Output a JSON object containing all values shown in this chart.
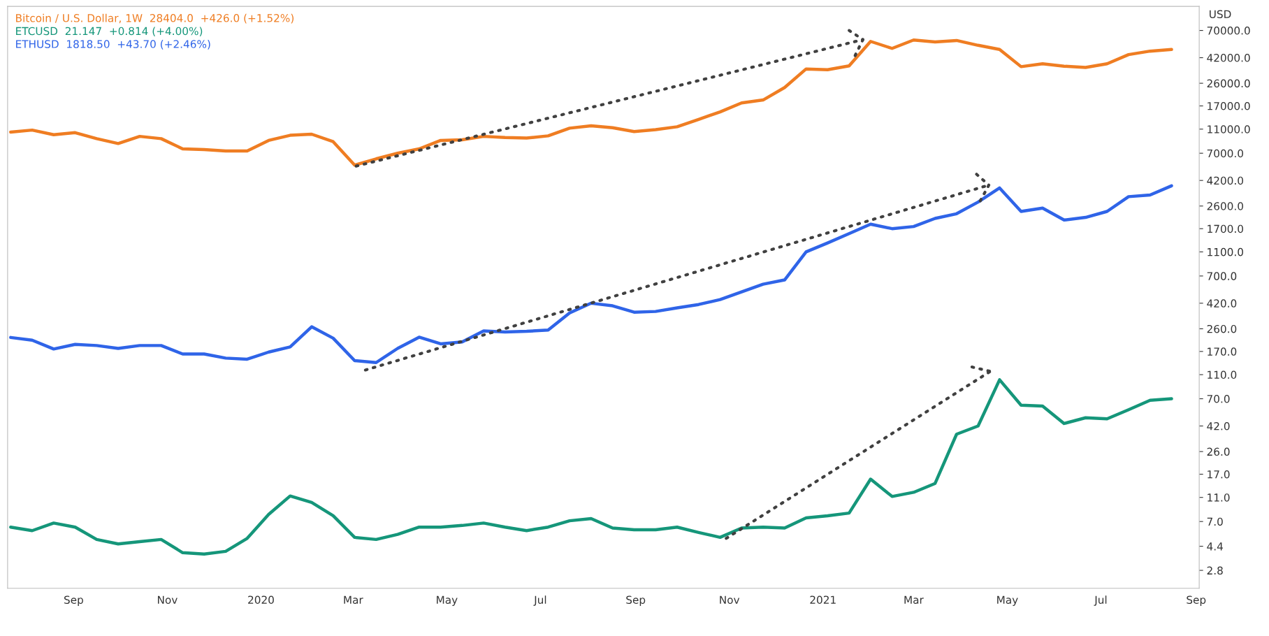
{
  "chart_data": {
    "type": "line",
    "ylabel": "USD",
    "log": "y",
    "legend": "top left",
    "grid": false,
    "marker": "none",
    "x": [
      "2019-07-22",
      "2019-08-05",
      "2019-08-19",
      "2019-09-02",
      "2019-09-16",
      "2019-09-30",
      "2019-10-14",
      "2019-10-28",
      "2019-11-11",
      "2019-11-25",
      "2019-12-09",
      "2019-12-23",
      "2020-01-06",
      "2020-01-20",
      "2020-02-03",
      "2020-02-17",
      "2020-03-02",
      "2020-03-16",
      "2020-03-30",
      "2020-04-13",
      "2020-04-27",
      "2020-05-11",
      "2020-05-25",
      "2020-06-08",
      "2020-06-22",
      "2020-07-06",
      "2020-07-20",
      "2020-08-03",
      "2020-08-17",
      "2020-08-31",
      "2020-09-14",
      "2020-09-28",
      "2020-10-12",
      "2020-10-26",
      "2020-11-09",
      "2020-11-23",
      "2020-12-07",
      "2020-12-21",
      "2021-01-04",
      "2021-01-18",
      "2021-02-01",
      "2021-02-15",
      "2021-03-01",
      "2021-03-15",
      "2021-03-29",
      "2021-04-12",
      "2021-04-26",
      "2021-05-10",
      "2021-05-24",
      "2021-06-07",
      "2021-06-21",
      "2021-07-05",
      "2021-07-19",
      "2021-08-02",
      "2021-08-16"
    ],
    "series": [
      {
        "name": "Bitcoin / U.S. Dollar, 1W  28404.0  +426.0 (+1.52%)",
        "color": "#ef7d22",
        "line_style": "solid",
        "values": [
          10400,
          10800,
          9900,
          10300,
          9200,
          8400,
          9600,
          9200,
          7600,
          7500,
          7300,
          7300,
          8900,
          9800,
          10000,
          8700,
          5600,
          6300,
          7000,
          7600,
          8900,
          9000,
          9600,
          9400,
          9300,
          9700,
          11200,
          11700,
          11300,
          10500,
          10900,
          11500,
          13200,
          15200,
          18000,
          19000,
          24000,
          34000,
          33500,
          36000,
          57000,
          50000,
          58500,
          56500,
          58000,
          53000,
          49000,
          35500,
          37500,
          35800,
          35000,
          37500,
          44500,
          47500,
          49000
        ]
      },
      {
        "name": "ETCUSD  21.147  +0.814 (+4.00%)",
        "color": "#15967a",
        "line_style": "solid",
        "values": [
          6.3,
          5.9,
          6.8,
          6.3,
          5.0,
          4.6,
          4.8,
          5.0,
          3.9,
          3.8,
          4.0,
          5.1,
          8.0,
          11.3,
          10.0,
          7.8,
          5.2,
          5.0,
          5.5,
          6.3,
          6.3,
          6.5,
          6.8,
          6.3,
          5.9,
          6.3,
          7.1,
          7.4,
          6.2,
          6.0,
          6.0,
          6.3,
          5.7,
          5.2,
          6.2,
          6.3,
          6.2,
          7.5,
          7.8,
          8.2,
          15.5,
          11.2,
          12.1,
          14.3,
          36,
          42,
          100,
          62,
          61,
          44,
          49,
          48,
          57,
          68,
          70
        ]
      },
      {
        "name": "ETHUSD  1818.50  +43.70 (+2.46%)",
        "color": "#2f64e8",
        "line_style": "solid",
        "values": [
          221,
          210,
          178,
          194,
          190,
          180,
          190,
          190,
          162,
          162,
          150,
          147,
          168,
          185,
          270,
          218,
          143,
          138,
          180,
          222,
          196,
          203,
          250,
          245,
          248,
          254,
          350,
          420,
          400,
          355,
          360,
          385,
          410,
          450,
          520,
          600,
          650,
          1100,
          1300,
          1550,
          1850,
          1700,
          1770,
          2060,
          2250,
          2800,
          3650,
          2350,
          2500,
          2000,
          2100,
          2350,
          3100,
          3200,
          3800
        ]
      },
      {
        "type": "line",
        "color": "#404040",
        "line_style": "dotted",
        "x": [
          "2020-03-03",
          "2021-01-27"
        ],
        "values": [
          5500,
          59000
        ]
      },
      {
        "type": "line",
        "color": "#404040",
        "line_style": "dotted",
        "x": [
          "2021-01-18",
          "2021-01-27",
          "2021-01-21"
        ],
        "values": [
          70000,
          59000,
          41400
        ]
      },
      {
        "type": "line",
        "color": "#404040",
        "line_style": "dotted",
        "x": [
          "2020-03-09",
          "2021-04-19"
        ],
        "values": [
          120,
          3850
        ]
      },
      {
        "type": "line",
        "color": "#404040",
        "line_style": "dotted",
        "x": [
          "2021-04-11",
          "2021-04-19",
          "2021-04-13"
        ],
        "values": [
          4720,
          3850,
          2800
        ]
      },
      {
        "type": "line",
        "color": "#404040",
        "line_style": "dotted",
        "x": [
          "2020-10-30",
          "2021-04-20"
        ],
        "values": [
          5.1,
          117
        ]
      },
      {
        "type": "line",
        "color": "#404040",
        "line_style": "dotted",
        "x": [
          "2021-04-08",
          "2021-04-20"
        ],
        "values": [
          127,
          117
        ]
      }
    ],
    "xlim": [
      "2019-07-20",
      "2021-09-03"
    ],
    "xticks": [
      {
        "value": "2019-09-01",
        "label": "Sep"
      },
      {
        "value": "2019-11-01",
        "label": "Nov"
      },
      {
        "value": "2020-01-01",
        "label": "2020"
      },
      {
        "value": "2020-03-01",
        "label": "Mar"
      },
      {
        "value": "2020-05-01",
        "label": "May"
      },
      {
        "value": "2020-07-01",
        "label": "Jul"
      },
      {
        "value": "2020-09-01",
        "label": "Sep"
      },
      {
        "value": "2020-11-01",
        "label": "Nov"
      },
      {
        "value": "2021-01-01",
        "label": "2021"
      },
      {
        "value": "2021-03-01",
        "label": "Mar"
      },
      {
        "value": "2021-05-01",
        "label": "May"
      },
      {
        "value": "2021-07-01",
        "label": "Jul"
      },
      {
        "value": "2021-09-01",
        "label": "Sep"
      }
    ],
    "ylim": [
      2.0,
      110000
    ],
    "yticks": [
      {
        "value": 2.8,
        "label": "2.8"
      },
      {
        "value": 4.4,
        "label": "4.4"
      },
      {
        "value": 7,
        "label": "7.0"
      },
      {
        "value": 11,
        "label": "11.0"
      },
      {
        "value": 17,
        "label": "17.0"
      },
      {
        "value": 26,
        "label": "26.0"
      },
      {
        "value": 42,
        "label": "42.0"
      },
      {
        "value": 70,
        "label": "70.0"
      },
      {
        "value": 110,
        "label": "110.0"
      },
      {
        "value": 170,
        "label": "170.0"
      },
      {
        "value": 260,
        "label": "260.0"
      },
      {
        "value": 420,
        "label": "420.0"
      },
      {
        "value": 700,
        "label": "700.0"
      },
      {
        "value": 1100,
        "label": "1100.0"
      },
      {
        "value": 1700,
        "label": "1700.0"
      },
      {
        "value": 2600,
        "label": "2600.0"
      },
      {
        "value": 4200,
        "label": "4200.0"
      },
      {
        "value": 7000,
        "label": "7000.0"
      },
      {
        "value": 11000,
        "label": "11000.0"
      },
      {
        "value": 17000,
        "label": "17000.0"
      },
      {
        "value": 26000,
        "label": "26000.0"
      },
      {
        "value": 42000,
        "label": "42000.0"
      },
      {
        "value": 70000,
        "label": "70000.0"
      }
    ]
  }
}
